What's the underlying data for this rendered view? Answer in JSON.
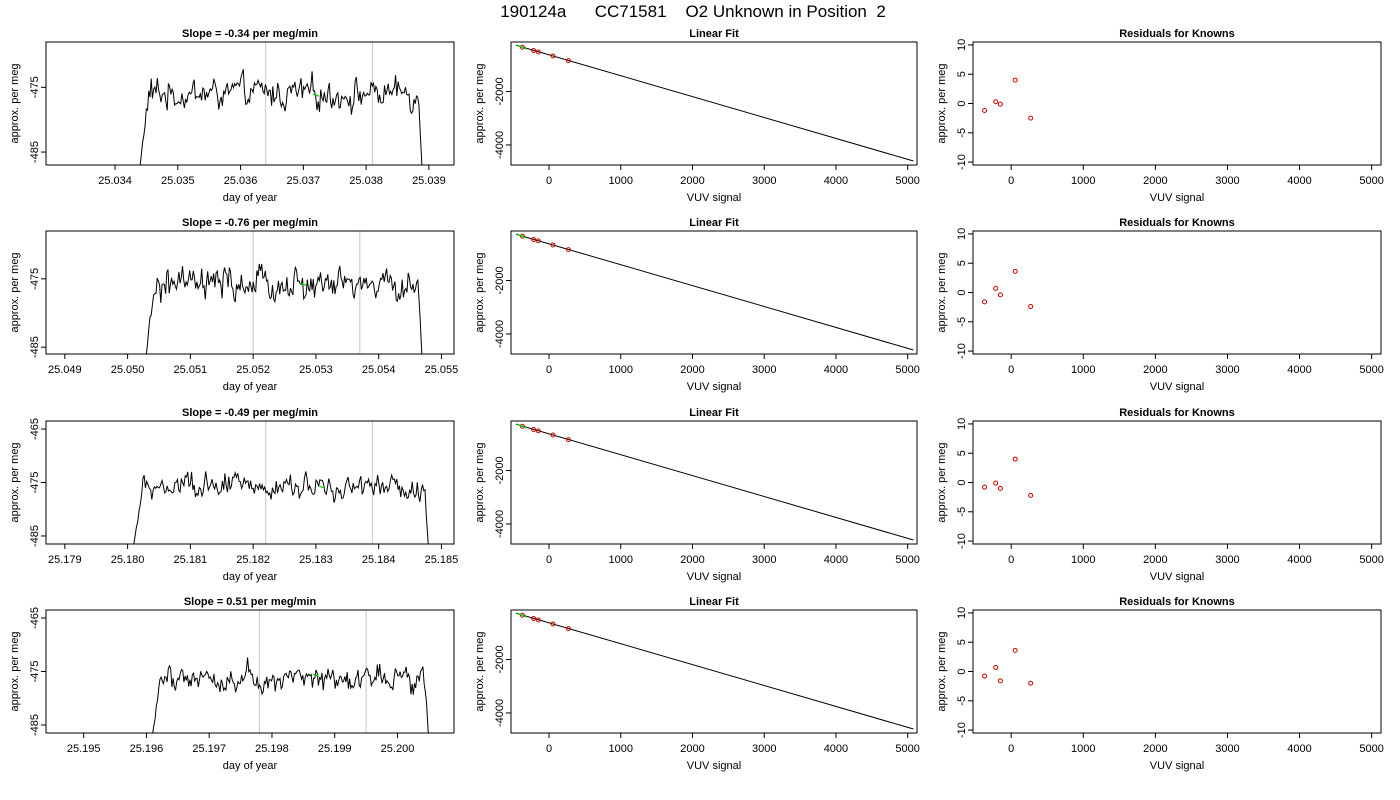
{
  "page_title": "190124a      CC71581    O2 Unknown in Position  2",
  "colors": {
    "trace": "#000000",
    "fit_line": "#000000",
    "known_point": "#cc0000",
    "unknown_marker": "#00cc00",
    "window_line": "#c8c8c8"
  },
  "chart_data": [
    {
      "type": "line",
      "row": 1,
      "title": "Slope =  -0.34  per meg/min",
      "xlabel": "day of year",
      "ylabel": "approx. per meg",
      "xlim": [
        25.0329,
        25.0394
      ],
      "ylim": [
        -487,
        -468
      ],
      "x_ticks": [
        "25.034",
        "25.035",
        "25.036",
        "25.037",
        "25.038",
        "25.039"
      ],
      "y_ticks": [
        "-485",
        "-475"
      ],
      "trace_x_range": [
        25.0344,
        25.0389
      ],
      "window_lines": [
        25.0364,
        25.0381
      ],
      "unknown_point": {
        "x": 25.0372,
        "y": -476.2
      }
    },
    {
      "type": "line",
      "title": "Linear Fit",
      "xlabel": "VUV signal",
      "ylabel": "approx. per meg",
      "xlim": [
        -530,
        5130
      ],
      "ylim": [
        -4750,
        -150
      ],
      "x_ticks": [
        "0",
        "1000",
        "2000",
        "3000",
        "4000",
        "5000"
      ],
      "y_ticks": [
        "-2000",
        "-4000"
      ],
      "fit_line": {
        "x": [
          -460,
          5080
        ],
        "y": [
          -270,
          -4600
        ]
      },
      "known_points": {
        "x": [
          -370,
          -215,
          -150,
          55,
          270
        ],
        "y": [
          -345,
          -470,
          -520,
          -675,
          -845
        ]
      },
      "unknown_point": {
        "x": -380,
        "y": -340
      }
    },
    {
      "type": "scatter",
      "title": "Residuals for Knowns",
      "xlabel": "VUV signal",
      "ylabel": "approx. per meg",
      "xlim": [
        -530,
        5130
      ],
      "ylim": [
        -10.5,
        10.5
      ],
      "x_ticks": [
        "0",
        "1000",
        "2000",
        "3000",
        "4000",
        "5000"
      ],
      "y_ticks": [
        "-10",
        "-5",
        "0",
        "5",
        "10"
      ],
      "x": [
        -370,
        -215,
        -150,
        55,
        270
      ],
      "y": [
        -1.2,
        0.3,
        -0.1,
        4.0,
        -2.5
      ]
    },
    {
      "type": "line",
      "row": 2,
      "title": "Slope =  -0.76  per meg/min",
      "xlabel": "day of year",
      "ylabel": "approx. per meg",
      "xlim": [
        25.0487,
        25.0552
      ],
      "ylim": [
        -486,
        -468
      ],
      "x_ticks": [
        "25.049",
        "25.050",
        "25.051",
        "25.052",
        "25.053",
        "25.054",
        "25.055"
      ],
      "y_ticks": [
        "-485",
        "-475"
      ],
      "trace_x_range": [
        25.0503,
        25.0547
      ],
      "window_lines": [
        25.052,
        25.0537
      ],
      "unknown_point": {
        "x": 25.0528,
        "y": -475.8
      }
    },
    {
      "type": "line",
      "title": "Linear Fit",
      "xlabel": "VUV signal",
      "ylabel": "approx. per meg",
      "xlim": [
        -530,
        5130
      ],
      "ylim": [
        -4750,
        -150
      ],
      "x_ticks": [
        "0",
        "1000",
        "2000",
        "3000",
        "4000",
        "5000"
      ],
      "y_ticks": [
        "-2000",
        "-4000"
      ],
      "fit_line": {
        "x": [
          -460,
          5080
        ],
        "y": [
          -270,
          -4600
        ]
      },
      "known_points": {
        "x": [
          -370,
          -215,
          -150,
          55,
          270
        ],
        "y": [
          -345,
          -470,
          -520,
          -675,
          -845
        ]
      },
      "unknown_point": {
        "x": -380,
        "y": -340
      }
    },
    {
      "type": "scatter",
      "title": "Residuals for Knowns",
      "xlabel": "VUV signal",
      "ylabel": "approx. per meg",
      "xlim": [
        -530,
        5130
      ],
      "ylim": [
        -10.5,
        10.5
      ],
      "x_ticks": [
        "0",
        "1000",
        "2000",
        "3000",
        "4000",
        "5000"
      ],
      "y_ticks": [
        "-10",
        "-5",
        "0",
        "5",
        "10"
      ],
      "x": [
        -370,
        -215,
        -150,
        55,
        270
      ],
      "y": [
        -1.6,
        0.7,
        -0.4,
        3.6,
        -2.4
      ]
    },
    {
      "type": "line",
      "row": 3,
      "title": "Slope =  -0.49  per meg/min",
      "xlabel": "day of year",
      "ylabel": "approx. per meg",
      "xlim": [
        25.1787,
        25.1852
      ],
      "ylim": [
        -486.5,
        -463.5
      ],
      "x_ticks": [
        "25.179",
        "25.180",
        "25.181",
        "25.182",
        "25.183",
        "25.184",
        "25.185"
      ],
      "y_ticks": [
        "-485",
        "-475",
        "-465"
      ],
      "trace_x_range": [
        25.1801,
        25.1848
      ],
      "window_lines": [
        25.1822,
        25.1839
      ],
      "unknown_point": {
        "x": 25.1831,
        "y": -475.9
      }
    },
    {
      "type": "line",
      "title": "Linear Fit",
      "xlabel": "VUV signal",
      "ylabel": "approx. per meg",
      "xlim": [
        -530,
        5130
      ],
      "ylim": [
        -4750,
        -150
      ],
      "x_ticks": [
        "0",
        "1000",
        "2000",
        "3000",
        "4000",
        "5000"
      ],
      "y_ticks": [
        "-2000",
        "-4000"
      ],
      "fit_line": {
        "x": [
          -460,
          5080
        ],
        "y": [
          -270,
          -4600
        ]
      },
      "known_points": {
        "x": [
          -370,
          -215,
          -150,
          55,
          270
        ],
        "y": [
          -345,
          -470,
          -520,
          -675,
          -845
        ]
      },
      "unknown_point": {
        "x": -380,
        "y": -340
      }
    },
    {
      "type": "scatter",
      "title": "Residuals for Knowns",
      "xlabel": "VUV signal",
      "ylabel": "approx. per meg",
      "xlim": [
        -530,
        5130
      ],
      "ylim": [
        -10.5,
        10.5
      ],
      "x_ticks": [
        "0",
        "1000",
        "2000",
        "3000",
        "4000",
        "5000"
      ],
      "y_ticks": [
        "-10",
        "-5",
        "0",
        "5",
        "10"
      ],
      "x": [
        -370,
        -215,
        -150,
        55,
        270
      ],
      "y": [
        -0.8,
        -0.1,
        -1.0,
        4.0,
        -2.2
      ]
    },
    {
      "type": "line",
      "row": 4,
      "title": "Slope =  0.51  per meg/min",
      "xlabel": "day of year",
      "ylabel": "approx. per meg",
      "xlim": [
        25.1944,
        25.2009
      ],
      "ylim": [
        -486.5,
        -463.5
      ],
      "x_ticks": [
        "25.195",
        "25.196",
        "25.197",
        "25.198",
        "25.199",
        "25.200"
      ],
      "y_ticks": [
        "-485",
        "-475",
        "-465"
      ],
      "trace_x_range": [
        25.1961,
        25.2005
      ],
      "window_lines": [
        25.1978,
        25.1995
      ],
      "unknown_point": {
        "x": 25.1987,
        "y": -475.7
      }
    },
    {
      "type": "line",
      "title": "Linear Fit",
      "xlabel": "VUV signal",
      "ylabel": "approx. per meg",
      "xlim": [
        -530,
        5130
      ],
      "ylim": [
        -4750,
        -150
      ],
      "x_ticks": [
        "0",
        "1000",
        "2000",
        "3000",
        "4000",
        "5000"
      ],
      "y_ticks": [
        "-2000",
        "-4000"
      ],
      "fit_line": {
        "x": [
          -460,
          5080
        ],
        "y": [
          -270,
          -4600
        ]
      },
      "known_points": {
        "x": [
          -370,
          -215,
          -150,
          55,
          270
        ],
        "y": [
          -345,
          -470,
          -520,
          -675,
          -845
        ]
      },
      "unknown_point": {
        "x": -380,
        "y": -340
      }
    },
    {
      "type": "scatter",
      "title": "Residuals for Knowns",
      "xlabel": "VUV signal",
      "ylabel": "approx. per meg",
      "xlim": [
        -530,
        5130
      ],
      "ylim": [
        -10.5,
        10.5
      ],
      "x_ticks": [
        "0",
        "1000",
        "2000",
        "3000",
        "4000",
        "5000"
      ],
      "y_ticks": [
        "-10",
        "-5",
        "0",
        "5",
        "10"
      ],
      "x": [
        -370,
        -215,
        -150,
        55,
        270
      ],
      "y": [
        -0.8,
        0.7,
        -1.6,
        3.6,
        -2.0
      ]
    }
  ]
}
